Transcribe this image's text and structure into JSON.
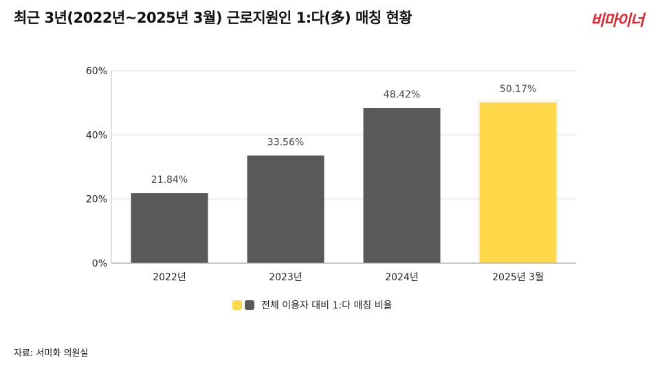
{
  "header": {
    "title": "최근 3년(2022년~2025년 3월) 근로지원인 1:다(多) 매칭 현황",
    "logo_text": "비마이너"
  },
  "colors": {
    "bar_gray": "#595959",
    "bar_highlight": "#FFD94A",
    "logo_red": "#E8202A",
    "grid": "#D9D9D9"
  },
  "chart_data": {
    "type": "bar",
    "categories": [
      "2022년",
      "2023년",
      "2024년",
      "2025년 3월"
    ],
    "values": [
      21.84,
      33.56,
      48.42,
      50.17
    ],
    "value_labels": [
      "21.84%",
      "33.56%",
      "48.42%",
      "50.17%"
    ],
    "highlight_index": 3,
    "ylim": [
      0,
      60
    ],
    "yticks": [
      0,
      20,
      40,
      60
    ],
    "ytick_labels": [
      "0%",
      "20%",
      "40%",
      "60%"
    ],
    "grid": true,
    "legend": {
      "position": "bottom",
      "label": "전체 이용자 대비 1:다 매칭 비율"
    },
    "source": "자료: 서미화 의원실"
  }
}
